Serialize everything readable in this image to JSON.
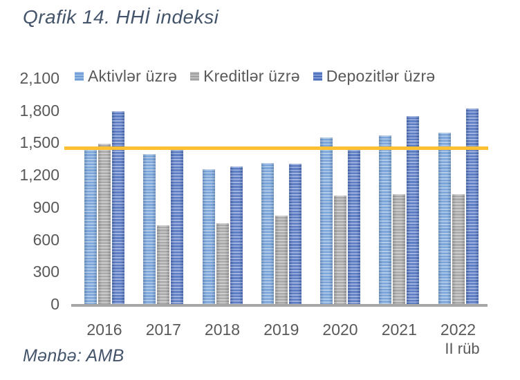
{
  "title": "Qrafik 14. HHİ indeksi",
  "source_note": "Mənbə: AMB",
  "colors": {
    "title_text": "#44546A",
    "axis_text": "#595959",
    "axis_line": "#A6A6A6",
    "threshold": "#FCC032"
  },
  "chart_data": {
    "type": "bar",
    "title": "Qrafik 14. HHİ indeksi",
    "categories": [
      "2016",
      "2017",
      "2018",
      "2019",
      "2020",
      "2021",
      "2022"
    ],
    "category_sub_label": {
      "category": "2022",
      "label": "II rüb"
    },
    "series": [
      {
        "name": "Aktivlər üzrə",
        "base_color": "#6D9CD6",
        "stripe_color": "#A9C6E8",
        "values": [
          1430,
          1395,
          1255,
          1310,
          1545,
          1570,
          1590
        ]
      },
      {
        "name": "Kreditlər üzrə",
        "base_color": "#A0A0A0",
        "stripe_color": "#C9C9C9",
        "values": [
          1490,
          730,
          750,
          820,
          1010,
          1020,
          1020
        ]
      },
      {
        "name": "Depozitlər üzrə",
        "base_color": "#4C6FBC",
        "stripe_color": "#97ABDE",
        "values": [
          1790,
          1430,
          1280,
          1305,
          1430,
          1750,
          1820
        ]
      }
    ],
    "threshold_line": {
      "value": 1450,
      "color": "#FCC032"
    },
    "ylim": [
      0,
      2100
    ],
    "ytick_step": 300,
    "ytick_labels": [
      "0",
      "300",
      "600",
      "900",
      "1,200",
      "1,500",
      "1,800",
      "2,100"
    ],
    "grid": false,
    "legend_position": "top",
    "xlabel": "",
    "ylabel": ""
  }
}
